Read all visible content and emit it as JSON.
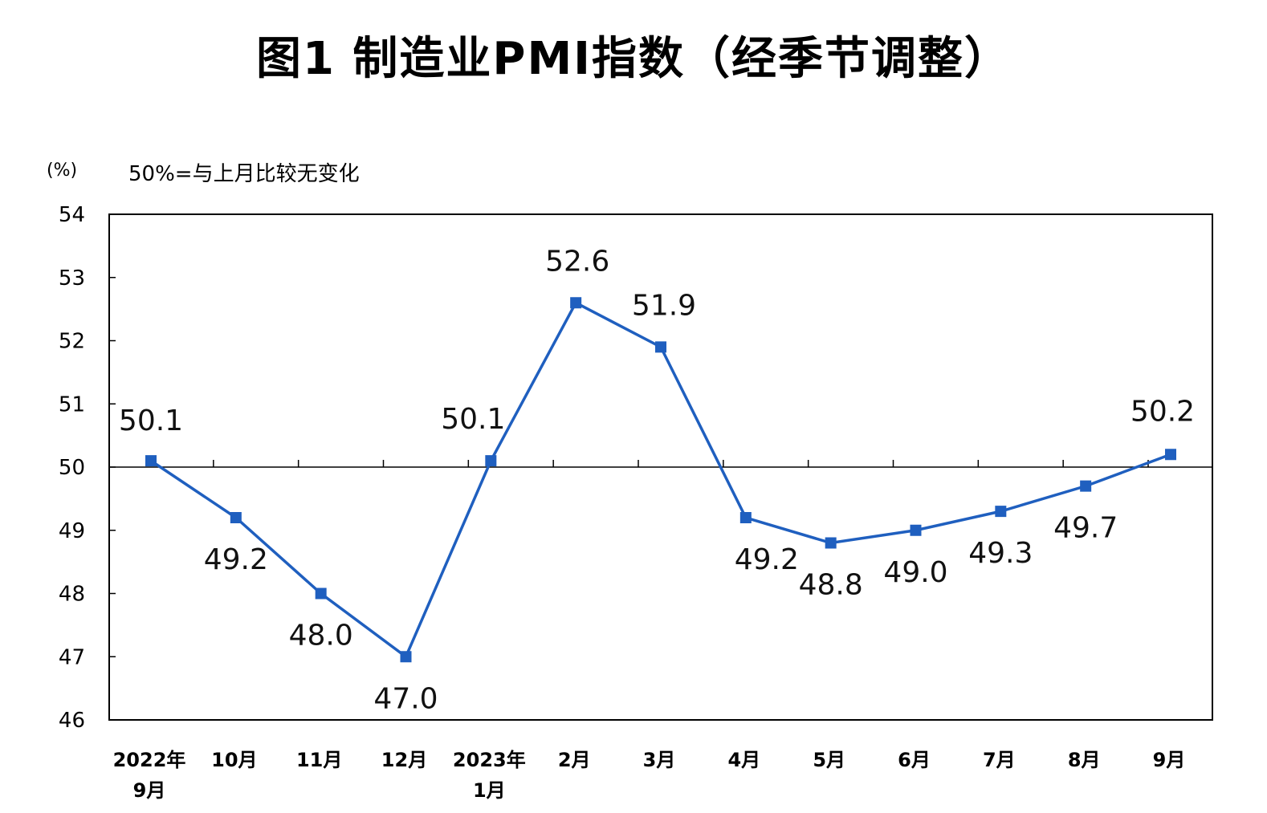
{
  "chart_data": {
    "type": "line",
    "title": "图1 制造业PMI指数（经季节调整）",
    "unit": "(%)",
    "note": "50%=与上月比较无变化",
    "categories": [
      "2022年\n9月",
      "10月",
      "11月",
      "12月",
      "2023年\n1月",
      "2月",
      "3月",
      "4月",
      "5月",
      "6月",
      "7月",
      "8月",
      "9月"
    ],
    "values": [
      50.1,
      49.2,
      48.0,
      47.0,
      50.1,
      52.6,
      51.9,
      49.2,
      48.8,
      49.0,
      49.3,
      49.7,
      50.2
    ],
    "data_labels": [
      "50.1",
      "49.2",
      "48.0",
      "47.0",
      "50.1",
      "52.6",
      "51.9",
      "49.2",
      "48.8",
      "49.0",
      "49.3",
      "49.7",
      "50.2"
    ],
    "yticks": [
      "46",
      "47",
      "48",
      "49",
      "50",
      "51",
      "52",
      "53",
      "54"
    ],
    "ylim": [
      46,
      54
    ],
    "reference_line": 50,
    "grid": false,
    "line_color": "#1F5FBF"
  }
}
